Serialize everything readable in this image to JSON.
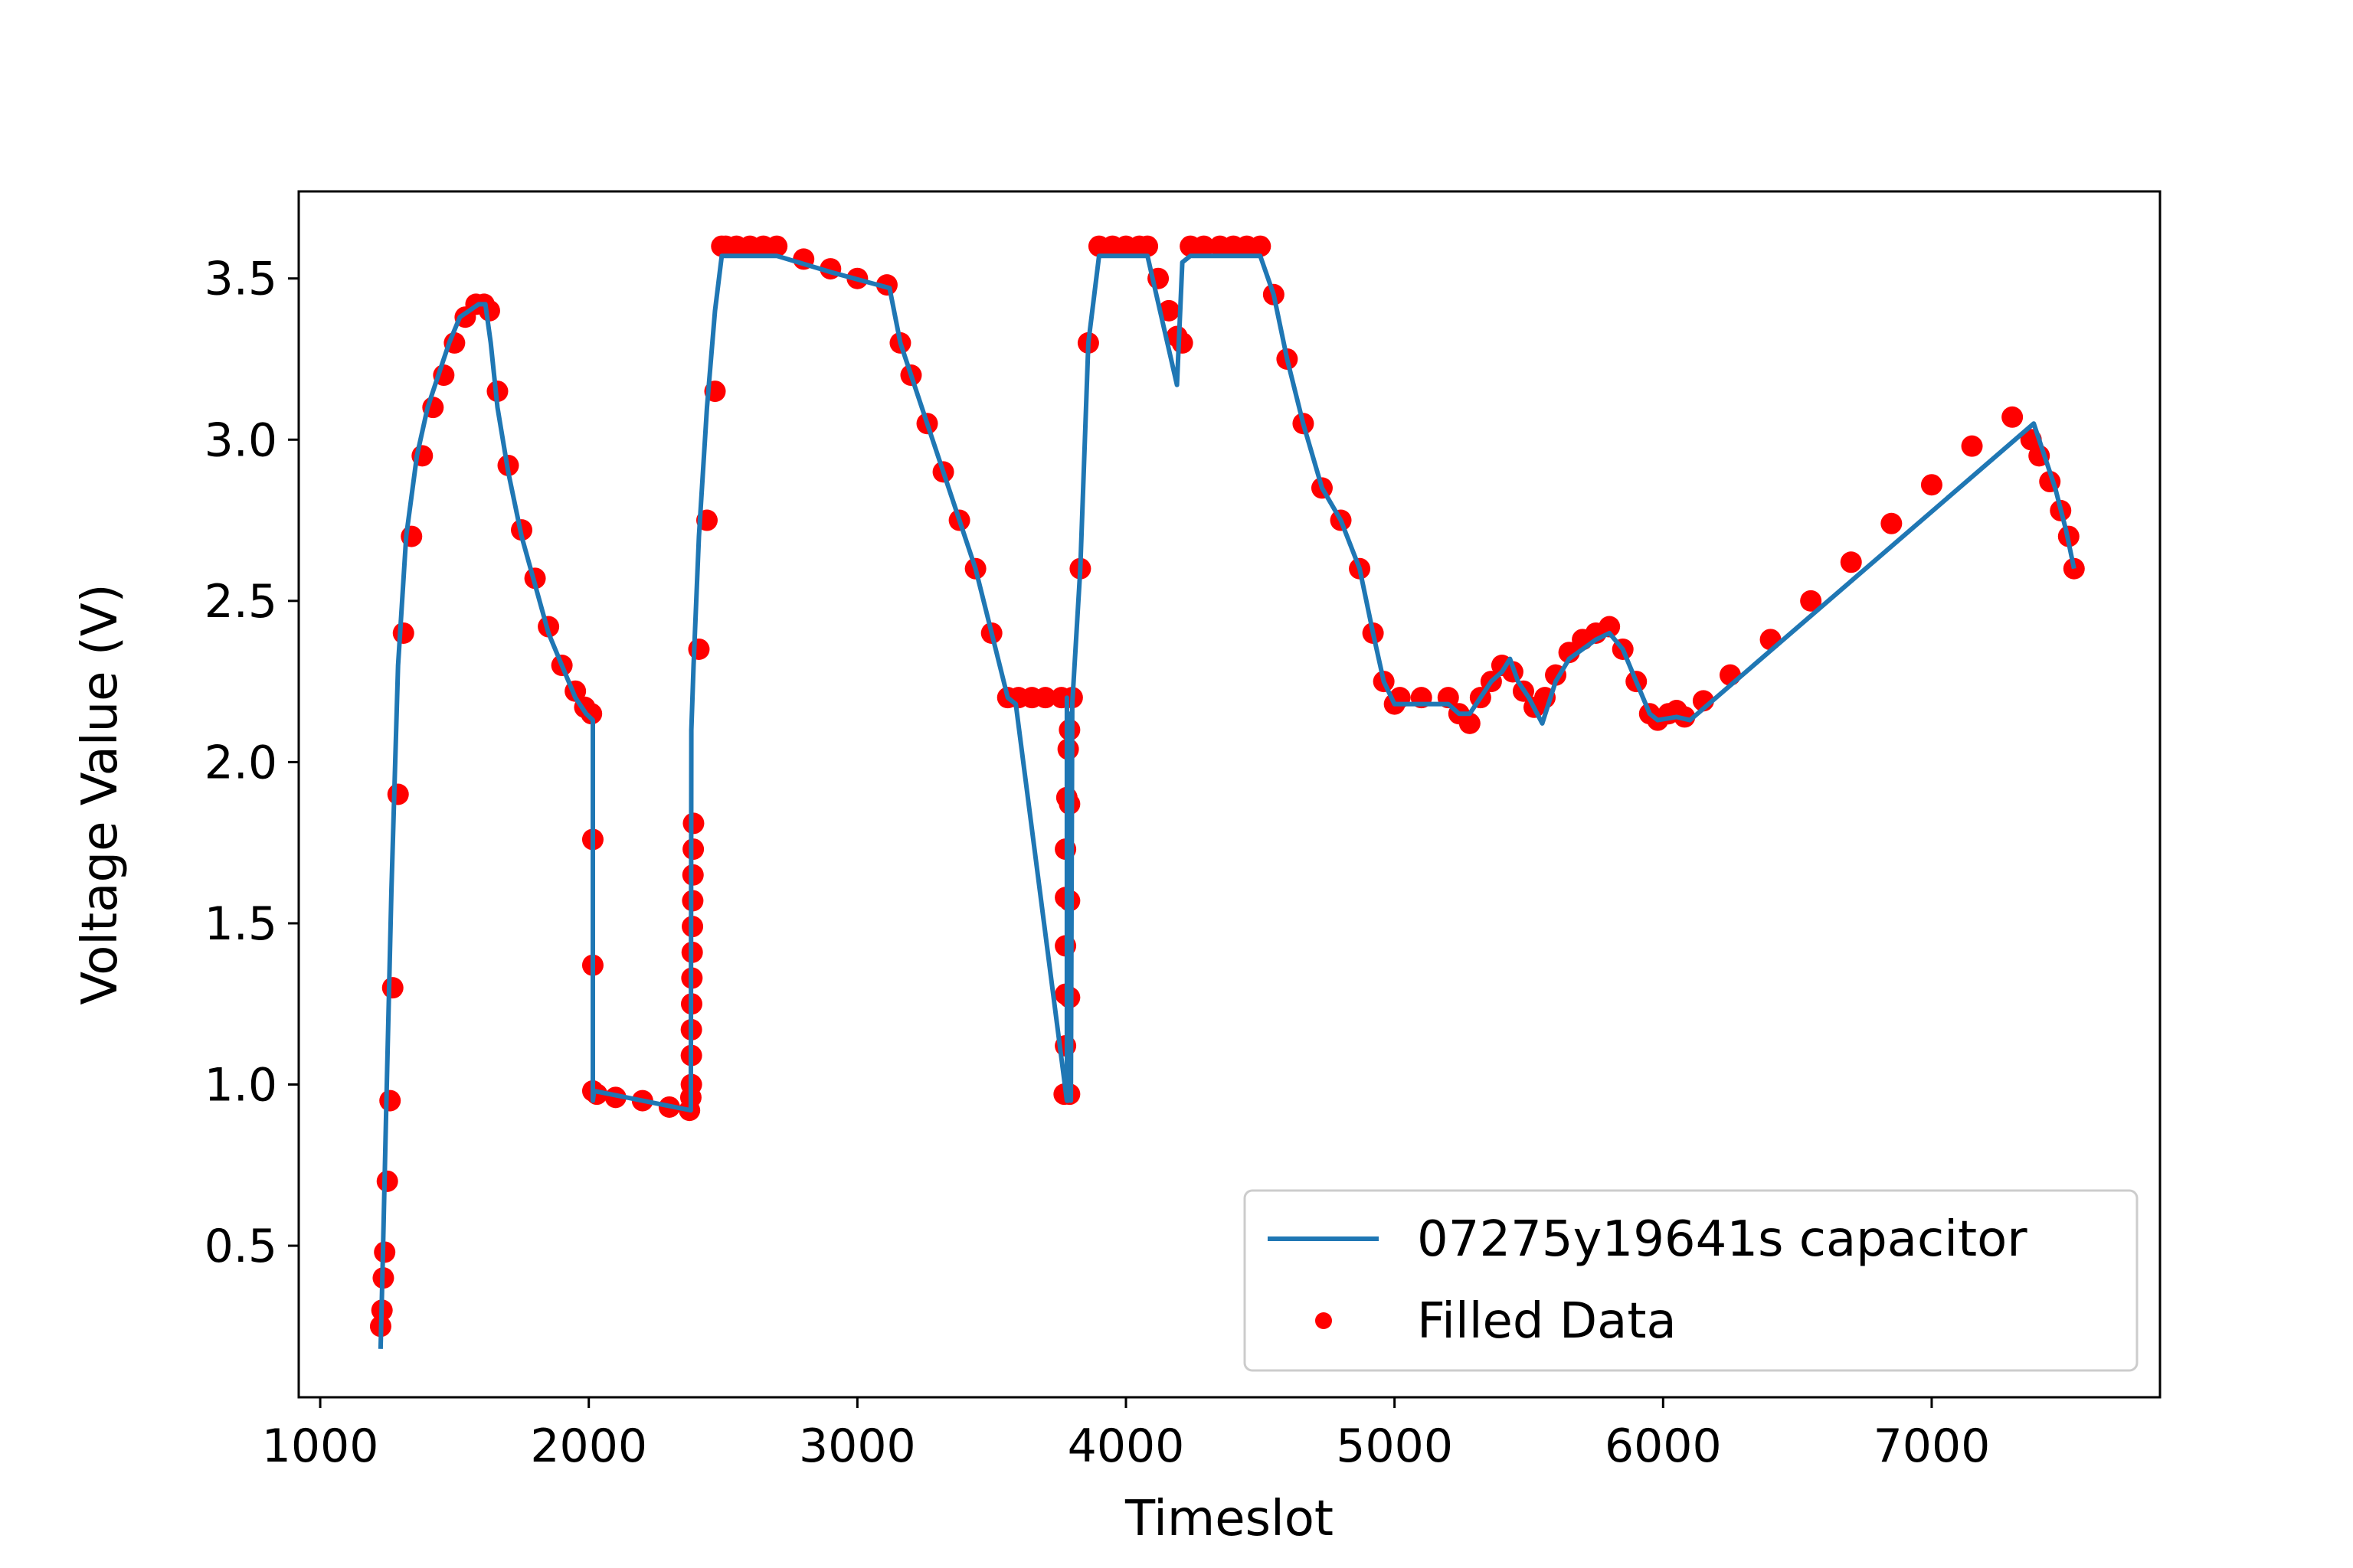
{
  "chart_data": {
    "type": "line",
    "title": "",
    "xlabel": "Timeslot",
    "ylabel": "Voltage Value (V)",
    "xlim": [
      920,
      7850
    ],
    "ylim": [
      0.03,
      3.77
    ],
    "x_ticks": [
      1000,
      2000,
      3000,
      4000,
      5000,
      6000,
      7000
    ],
    "y_ticks": [
      0.5,
      1.0,
      1.5,
      2.0,
      2.5,
      3.0,
      3.5
    ],
    "x_tick_labels": [
      "1000",
      "2000",
      "3000",
      "4000",
      "5000",
      "6000",
      "7000"
    ],
    "y_tick_labels": [
      "0.5",
      "1.0",
      "1.5",
      "2.0",
      "2.5",
      "3.0",
      "3.5"
    ],
    "grid": false,
    "legend_position": "lower-right",
    "series": [
      {
        "name": "07275y19641s capacitor",
        "kind": "line",
        "color": "#1f77b4",
        "x": [
          1225,
          1232,
          1245,
          1265,
          1290,
          1320,
          1360,
          1400,
          1440,
          1480,
          1520,
          1555,
          1590,
          1615,
          1635,
          1660,
          1700,
          1750,
          1800,
          1850,
          1900,
          1950,
          1990,
          2015,
          2015,
          2020,
          2200,
          2380,
          2382,
          2390,
          2410,
          2440,
          2470,
          2495,
          2520,
          2700,
          2900,
          3120,
          3160,
          3200,
          3260,
          3320,
          3380,
          3440,
          3500,
          3560,
          3590,
          3780,
          3780,
          3785,
          3790,
          3795,
          3800,
          3830,
          3860,
          3900,
          4000,
          4080,
          4190,
          4210,
          4240,
          4290,
          4500,
          4550,
          4600,
          4660,
          4730,
          4800,
          4870,
          4920,
          4960,
          5000,
          5020,
          5200,
          5240,
          5280,
          5320,
          5360,
          5400,
          5430,
          5460,
          5500,
          5550,
          5600,
          5650,
          5700,
          5750,
          5800,
          5850,
          5900,
          5950,
          5980,
          6050,
          6100,
          7380,
          7420,
          7460,
          7500,
          7530
        ],
        "y": [
          0.18,
          0.42,
          0.9,
          1.6,
          2.3,
          2.7,
          2.95,
          3.1,
          3.2,
          3.3,
          3.38,
          3.4,
          3.42,
          3.42,
          3.3,
          3.1,
          2.9,
          2.7,
          2.55,
          2.4,
          2.3,
          2.2,
          2.15,
          2.13,
          0.95,
          0.98,
          0.95,
          0.92,
          2.1,
          2.3,
          2.7,
          3.1,
          3.4,
          3.57,
          3.57,
          3.57,
          3.52,
          3.47,
          3.3,
          3.2,
          3.05,
          2.9,
          2.75,
          2.6,
          2.4,
          2.2,
          2.18,
          0.95,
          2.2,
          0.95,
          2.15,
          0.95,
          2.18,
          2.6,
          3.3,
          3.57,
          3.57,
          3.57,
          3.17,
          3.55,
          3.57,
          3.57,
          3.57,
          3.45,
          3.25,
          3.05,
          2.85,
          2.75,
          2.6,
          2.4,
          2.25,
          2.18,
          2.18,
          2.18,
          2.15,
          2.15,
          2.2,
          2.25,
          2.28,
          2.32,
          2.25,
          2.2,
          2.12,
          2.25,
          2.32,
          2.35,
          2.38,
          2.4,
          2.35,
          2.25,
          2.15,
          2.13,
          2.14,
          2.13,
          3.05,
          2.95,
          2.85,
          2.72,
          2.6
        ]
      },
      {
        "name": "Filled Data",
        "kind": "scatter",
        "color": "#ff0000",
        "x": [
          1225,
          1230,
          1235,
          1240,
          1250,
          1260,
          1270,
          1290,
          1310,
          1340,
          1380,
          1420,
          1460,
          1500,
          1540,
          1580,
          1610,
          1630,
          1660,
          1700,
          1750,
          1800,
          1850,
          1900,
          1950,
          1985,
          2010,
          2015,
          2015,
          2015,
          2030,
          2100,
          2200,
          2300,
          2375,
          2380,
          2382,
          2382,
          2382,
          2383,
          2384,
          2385,
          2386,
          2387,
          2388,
          2389,
          2390,
          2410,
          2440,
          2470,
          2495,
          2510,
          2550,
          2600,
          2650,
          2700,
          2800,
          2900,
          3000,
          3110,
          3160,
          3200,
          3260,
          3320,
          3380,
          3440,
          3500,
          3560,
          3600,
          3650,
          3700,
          3760,
          3770,
          3775,
          3775,
          3775,
          3775,
          3775,
          3780,
          3785,
          3790,
          3790,
          3790,
          3790,
          3790,
          3800,
          3830,
          3860,
          3900,
          3950,
          4000,
          4050,
          4080,
          4120,
          4160,
          4190,
          4210,
          4240,
          4290,
          4350,
          4400,
          4450,
          4500,
          4550,
          4600,
          4660,
          4730,
          4800,
          4870,
          4920,
          4960,
          5000,
          5020,
          5100,
          5200,
          5240,
          5280,
          5320,
          5360,
          5400,
          5440,
          5480,
          5520,
          5560,
          5600,
          5650,
          5700,
          5750,
          5800,
          5850,
          5900,
          5950,
          5980,
          6020,
          6050,
          6080,
          6150,
          6250,
          6400,
          6550,
          6700,
          6850,
          7000,
          7150,
          7300,
          7370,
          7400,
          7440,
          7480,
          7510,
          7530
        ],
        "y": [
          0.25,
          0.3,
          0.4,
          0.48,
          0.7,
          0.95,
          1.3,
          1.9,
          2.4,
          2.7,
          2.95,
          3.1,
          3.2,
          3.3,
          3.38,
          3.42,
          3.42,
          3.4,
          3.15,
          2.92,
          2.72,
          2.57,
          2.42,
          2.3,
          2.22,
          2.17,
          2.15,
          1.76,
          1.37,
          0.98,
          0.97,
          0.96,
          0.95,
          0.93,
          0.92,
          0.96,
          1.0,
          1.09,
          1.17,
          1.25,
          1.33,
          1.41,
          1.49,
          1.57,
          1.65,
          1.73,
          1.81,
          2.35,
          2.75,
          3.15,
          3.6,
          3.6,
          3.6,
          3.6,
          3.6,
          3.6,
          3.56,
          3.53,
          3.5,
          3.48,
          3.3,
          3.2,
          3.05,
          2.9,
          2.75,
          2.6,
          2.4,
          2.2,
          2.2,
          2.2,
          2.2,
          2.2,
          0.97,
          1.12,
          1.28,
          1.43,
          1.58,
          1.73,
          1.89,
          2.04,
          0.97,
          1.27,
          1.57,
          1.87,
          2.1,
          2.2,
          2.6,
          3.3,
          3.6,
          3.6,
          3.6,
          3.6,
          3.6,
          3.5,
          3.4,
          3.32,
          3.3,
          3.6,
          3.6,
          3.6,
          3.6,
          3.6,
          3.6,
          3.45,
          3.25,
          3.05,
          2.85,
          2.75,
          2.6,
          2.4,
          2.25,
          2.18,
          2.2,
          2.2,
          2.2,
          2.15,
          2.12,
          2.2,
          2.25,
          2.3,
          2.28,
          2.22,
          2.17,
          2.2,
          2.27,
          2.34,
          2.38,
          2.4,
          2.42,
          2.35,
          2.25,
          2.15,
          2.13,
          2.15,
          2.16,
          2.14,
          2.19,
          2.27,
          2.38,
          2.5,
          2.62,
          2.74,
          2.86,
          2.98,
          3.07,
          3.0,
          2.95,
          2.87,
          2.78,
          2.7,
          2.6
        ]
      }
    ]
  }
}
